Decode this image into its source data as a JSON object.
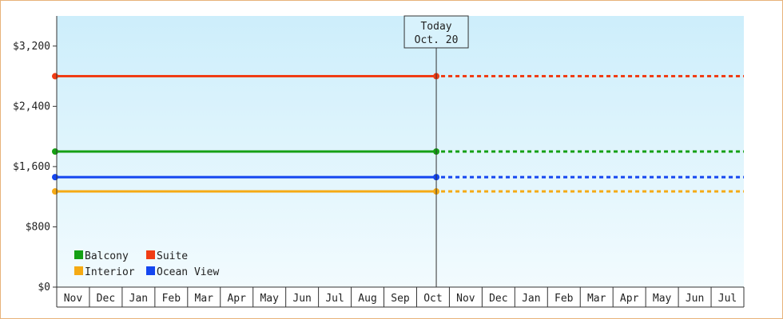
{
  "chart_data": {
    "type": "line",
    "ylabel": "",
    "xlabel": "",
    "ylim": [
      0,
      3600
    ],
    "y_ticks": [
      {
        "value": 0,
        "label": "$0"
      },
      {
        "value": 800,
        "label": "$800"
      },
      {
        "value": 1600,
        "label": "$1,600"
      },
      {
        "value": 2400,
        "label": "$2,400"
      },
      {
        "value": 3200,
        "label": "$3,200"
      }
    ],
    "months": [
      "Nov",
      "Dec",
      "Jan",
      "Feb",
      "Mar",
      "Apr",
      "May",
      "Jun",
      "Jul",
      "Aug",
      "Sep",
      "Oct",
      "Nov",
      "Dec",
      "Jan",
      "Feb",
      "Mar",
      "Apr",
      "May",
      "Jun",
      "Jul"
    ],
    "today_index": 11.6,
    "today": {
      "line1": "Today",
      "line2": "Oct. 20"
    },
    "series": [
      {
        "name": "Suite",
        "color": "#f03c14",
        "value": 2800
      },
      {
        "name": "Balcony",
        "color": "#14a014",
        "value": 1800
      },
      {
        "name": "Ocean View",
        "color": "#1446f0",
        "value": 1460
      },
      {
        "name": "Interior",
        "color": "#f5aa14",
        "value": 1270
      }
    ],
    "legend_placement": "bottom-left",
    "grid": false
  },
  "colors": {
    "plot_top": "#cdeefb",
    "plot_bottom": "#f2fbfe",
    "border": "#e8b27a"
  }
}
